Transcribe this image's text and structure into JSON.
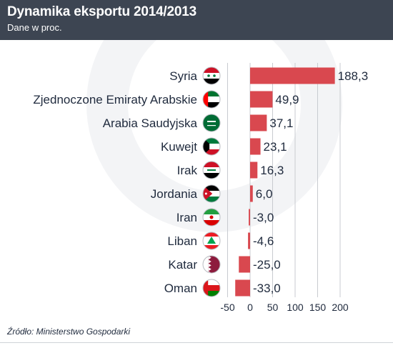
{
  "header": {
    "title": "Dynamika eksportu 2014/2013",
    "subtitle": "Dane w proc."
  },
  "source": "Źródło: Ministerstwo Gospodarki",
  "colors": {
    "header_bg": "#3d4552",
    "bar": "#d9484f",
    "grid": "#c8cbd0",
    "text": "#1f2a3d"
  },
  "chart_data": {
    "type": "bar",
    "orientation": "horizontal",
    "title": "Dynamika eksportu 2014/2013",
    "subtitle": "Dane w proc.",
    "categories": [
      "Syria",
      "Zjednoczone Emiraty Arabskie",
      "Arabia Saudyjska",
      "Kuwejt",
      "Irak",
      "Jordania",
      "Iran",
      "Liban",
      "Katar",
      "Oman"
    ],
    "values": [
      188.3,
      49.9,
      37.1,
      23.1,
      16.3,
      6.0,
      -3.0,
      -4.6,
      -25.0,
      -33.0
    ],
    "value_labels": [
      "188,3",
      "49,9",
      "37,1",
      "23,1",
      "16,3",
      "6,0",
      "-3,0",
      "-4,6",
      "-25,0",
      "-33,0"
    ],
    "flags": [
      "syria-flag-icon",
      "uae-flag-icon",
      "saudi-arabia-flag-icon",
      "kuwait-flag-icon",
      "iraq-flag-icon",
      "jordan-flag-icon",
      "iran-flag-icon",
      "lebanon-flag-icon",
      "qatar-flag-icon",
      "oman-flag-icon"
    ],
    "xticks": [
      -50,
      0,
      50,
      100,
      150,
      200
    ],
    "xtick_labels": [
      "-50",
      "0",
      "50",
      "100",
      "150",
      "200"
    ],
    "xlim": [
      -50,
      200
    ],
    "grid": "vertical",
    "legend": "none"
  }
}
